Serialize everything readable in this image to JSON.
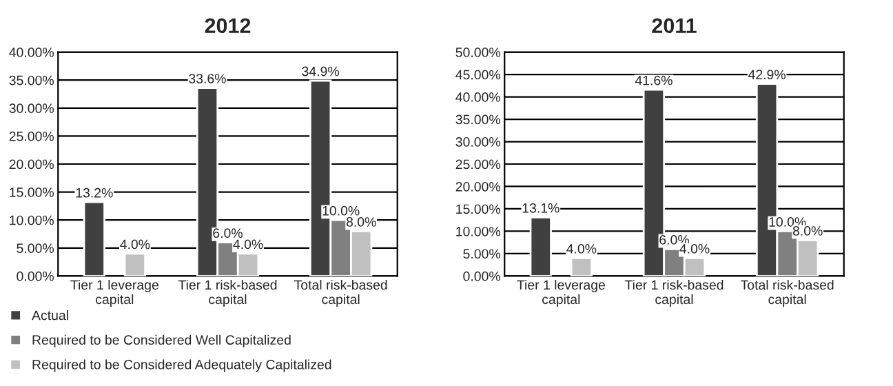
{
  "chart_data": [
    {
      "type": "bar",
      "title": "2012",
      "categories": [
        "Tier 1 leverage capital",
        "Tier 1 risk-based capital",
        "Total risk-based capital"
      ],
      "series": [
        {
          "name": "Actual",
          "color": "#404040",
          "values": [
            13.2,
            33.6,
            34.9
          ],
          "value_labels": [
            "13.2%",
            "33.6%",
            "34.9%"
          ]
        },
        {
          "name": "Required to be Considered Well Capitalized",
          "color": "#808080",
          "values": [
            null,
            6.0,
            10.0
          ],
          "value_labels": [
            null,
            "6.0%",
            "10.0%"
          ]
        },
        {
          "name": "Required to be Considered Adequately Capitalized",
          "color": "#c0c0c0",
          "values": [
            4.0,
            4.0,
            8.0
          ],
          "value_labels": [
            "4.0%",
            "4.0%",
            "8.0%"
          ]
        }
      ],
      "ylim": [
        0,
        40
      ],
      "yticks": [
        {
          "value": 0,
          "label": "0.00%"
        },
        {
          "value": 5,
          "label": "5.00%"
        },
        {
          "value": 10,
          "label": "10.00%"
        },
        {
          "value": 15,
          "label": "15.00%"
        },
        {
          "value": 20,
          "label": "20.00%"
        },
        {
          "value": 25,
          "label": "25.00%"
        },
        {
          "value": 30,
          "label": "30.00%"
        },
        {
          "value": 35,
          "label": "35.00%"
        },
        {
          "value": 40,
          "label": "40.00%"
        }
      ],
      "grid": "y",
      "legend": "bottom"
    },
    {
      "type": "bar",
      "title": "2011",
      "categories": [
        "Tier 1 leverage capital",
        "Tier 1 risk-based capital",
        "Total risk-based capital"
      ],
      "series": [
        {
          "color": "#404040",
          "values": [
            13.1,
            41.6,
            42.9
          ],
          "value_labels": [
            "13.1%",
            "41.6%",
            "42.9%"
          ]
        },
        {
          "color": "#808080",
          "values": [
            null,
            6.0,
            10.0
          ],
          "value_labels": [
            null,
            "6.0%",
            "10.0%"
          ]
        },
        {
          "color": "#c0c0c0",
          "values": [
            4.0,
            4.0,
            8.0
          ],
          "value_labels": [
            "4.0%",
            "4.0%",
            "8.0%"
          ]
        }
      ],
      "ylim": [
        0,
        50
      ],
      "yticks": [
        {
          "value": 0,
          "label": "0.00%"
        },
        {
          "value": 5,
          "label": "5.00%"
        },
        {
          "value": 10,
          "label": "10.00%"
        },
        {
          "value": 15,
          "label": "15.00%"
        },
        {
          "value": 20,
          "label": "20.00%"
        },
        {
          "value": 25,
          "label": "25.00%"
        },
        {
          "value": 30,
          "label": "30.00%"
        },
        {
          "value": 35,
          "label": "35.00%"
        },
        {
          "value": 40,
          "label": "40.00%"
        },
        {
          "value": 45,
          "label": "45.00%"
        },
        {
          "value": 50,
          "label": "50.00%"
        }
      ],
      "grid": "y"
    }
  ]
}
